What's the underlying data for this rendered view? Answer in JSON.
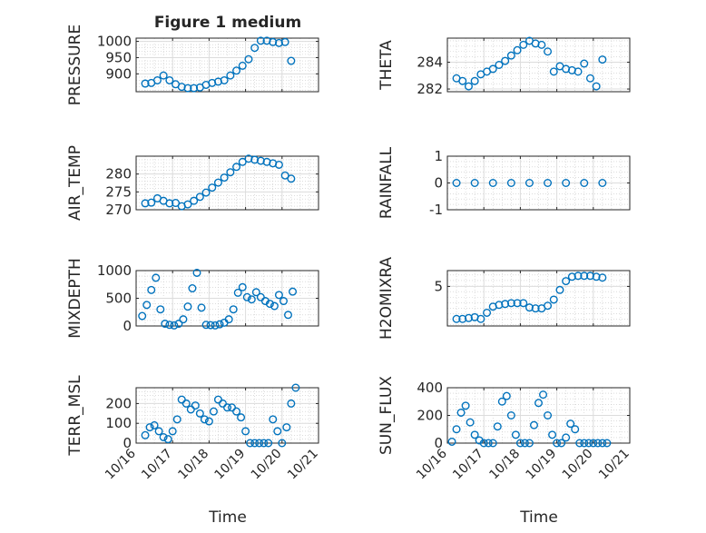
{
  "figure": {
    "title": "Figure 1 medium",
    "marker_color": "#0072BD",
    "x_axis": {
      "label": "Time",
      "range": [
        "10/16",
        "10/21"
      ],
      "ticks": [
        "10/16",
        "10/17",
        "10/18",
        "10/19",
        "10/20",
        "10/21"
      ]
    }
  },
  "chart_data": [
    {
      "type": "scatter",
      "panel": "pressure",
      "ylabel": "PRESSURE",
      "ylim": [
        845,
        1010
      ],
      "yticks": [
        900,
        950,
        1000
      ],
      "grid": "on",
      "marker": "open-circle",
      "x": [
        "10/16 06:00",
        "10/16 10:00",
        "10/16 14:00",
        "10/16 18:00",
        "10/16 22:00",
        "10/17 02:00",
        "10/17 06:00",
        "10/17 10:00",
        "10/17 14:00",
        "10/17 18:00",
        "10/17 22:00",
        "10/18 02:00",
        "10/18 06:00",
        "10/18 10:00",
        "10/18 14:00",
        "10/18 18:00",
        "10/18 22:00",
        "10/19 02:00",
        "10/19 06:00",
        "10/19 10:00",
        "10/19 14:00",
        "10/19 18:00",
        "10/19 22:00",
        "10/20 02:00",
        "10/20 06:00"
      ],
      "y": [
        870,
        872,
        880,
        895,
        880,
        868,
        860,
        856,
        856,
        858,
        866,
        872,
        876,
        880,
        895,
        910,
        925,
        945,
        980,
        1002,
        1002,
        998,
        995,
        998,
        940
      ]
    },
    {
      "type": "scatter",
      "panel": "theta",
      "ylabel": "THETA",
      "ylim": [
        281.8,
        285.8
      ],
      "yticks": [
        282,
        284
      ],
      "grid": "on",
      "marker": "open-circle",
      "x": [
        "10/16 06:00",
        "10/16 10:00",
        "10/16 14:00",
        "10/16 18:00",
        "10/16 22:00",
        "10/17 02:00",
        "10/17 06:00",
        "10/17 10:00",
        "10/17 14:00",
        "10/17 18:00",
        "10/17 22:00",
        "10/18 02:00",
        "10/18 06:00",
        "10/18 10:00",
        "10/18 14:00",
        "10/18 18:00",
        "10/18 22:00",
        "10/19 02:00",
        "10/19 06:00",
        "10/19 10:00",
        "10/19 14:00",
        "10/19 18:00",
        "10/19 22:00",
        "10/20 02:00",
        "10/20 06:00"
      ],
      "y": [
        282.8,
        282.6,
        282.2,
        282.6,
        283.1,
        283.3,
        283.5,
        283.8,
        284.1,
        284.5,
        284.9,
        285.3,
        285.6,
        285.4,
        285.3,
        284.8,
        283.3,
        283.7,
        283.5,
        283.4,
        283.3,
        283.9,
        282.8,
        282.2,
        284.2
      ]
    },
    {
      "type": "scatter",
      "panel": "air_temp",
      "ylabel": "AIR_TEMP",
      "ylim": [
        270,
        285
      ],
      "yticks": [
        270,
        275,
        280
      ],
      "grid": "on",
      "marker": "open-circle",
      "x": [
        "10/16 06:00",
        "10/16 10:00",
        "10/16 14:00",
        "10/16 18:00",
        "10/16 22:00",
        "10/17 02:00",
        "10/17 06:00",
        "10/17 10:00",
        "10/17 14:00",
        "10/17 18:00",
        "10/17 22:00",
        "10/18 02:00",
        "10/18 06:00",
        "10/18 10:00",
        "10/18 14:00",
        "10/18 18:00",
        "10/18 22:00",
        "10/19 02:00",
        "10/19 06:00",
        "10/19 10:00",
        "10/19 14:00",
        "10/19 18:00",
        "10/19 22:00",
        "10/20 02:00",
        "10/20 06:00"
      ],
      "y": [
        271.8,
        272.0,
        273.2,
        272.5,
        271.8,
        271.9,
        271.0,
        271.5,
        272.5,
        273.6,
        274.8,
        276.2,
        277.6,
        279.0,
        280.5,
        282.0,
        283.4,
        284.3,
        284.0,
        283.7,
        283.4,
        283.0,
        282.6,
        279.6,
        278.7
      ]
    },
    {
      "type": "scatter",
      "panel": "rainfall",
      "ylabel": "RAINFALL",
      "ylim": [
        -1,
        1
      ],
      "yticks": [
        -1,
        0,
        1
      ],
      "grid": "on",
      "marker": "open-circle",
      "x": [
        "10/16 06:00",
        "10/16 18:00",
        "10/17 06:00",
        "10/17 18:00",
        "10/18 06:00",
        "10/18 18:00",
        "10/19 06:00",
        "10/19 18:00",
        "10/20 06:00"
      ],
      "y": [
        0,
        0,
        0,
        0,
        0,
        0,
        0,
        0,
        0
      ]
    },
    {
      "type": "scatter",
      "panel": "mixdepth",
      "ylabel": "MIXDEPTH",
      "ylim": [
        0,
        1000
      ],
      "yticks": [
        0,
        500,
        1000
      ],
      "grid": "on",
      "marker": "open-circle",
      "x": [
        "10/16 04:00",
        "10/16 07:00",
        "10/16 10:00",
        "10/16 13:00",
        "10/16 16:00",
        "10/16 19:00",
        "10/16 22:00",
        "10/17 01:00",
        "10/17 04:00",
        "10/17 07:00",
        "10/17 10:00",
        "10/17 13:00",
        "10/17 16:00",
        "10/17 19:00",
        "10/17 22:00",
        "10/18 01:00",
        "10/18 04:00",
        "10/18 07:00",
        "10/18 10:00",
        "10/18 13:00",
        "10/18 16:00",
        "10/18 19:00",
        "10/18 22:00",
        "10/19 01:00",
        "10/19 04:00",
        "10/19 07:00",
        "10/19 10:00",
        "10/19 13:00",
        "10/19 16:00",
        "10/19 19:00",
        "10/19 22:00",
        "10/20 01:00",
        "10/20 04:00",
        "10/20 07:00"
      ],
      "y": [
        180,
        380,
        650,
        870,
        300,
        40,
        20,
        10,
        40,
        120,
        350,
        680,
        960,
        330,
        20,
        15,
        10,
        30,
        60,
        120,
        300,
        600,
        700,
        520,
        480,
        610,
        520,
        450,
        400,
        360,
        560,
        450,
        200,
        620
      ]
    },
    {
      "type": "scatter",
      "panel": "h2omixra",
      "ylabel": "H2OMIXRA",
      "ylim": [
        0.5,
        6.8
      ],
      "yticks": [
        5
      ],
      "grid": "on",
      "marker": "open-circle",
      "x": [
        "10/16 06:00",
        "10/16 10:00",
        "10/16 14:00",
        "10/16 18:00",
        "10/16 22:00",
        "10/17 02:00",
        "10/17 06:00",
        "10/17 10:00",
        "10/17 14:00",
        "10/17 18:00",
        "10/17 22:00",
        "10/18 02:00",
        "10/18 06:00",
        "10/18 10:00",
        "10/18 14:00",
        "10/18 18:00",
        "10/18 22:00",
        "10/19 02:00",
        "10/19 06:00",
        "10/19 10:00",
        "10/19 14:00",
        "10/19 18:00",
        "10/19 22:00",
        "10/20 02:00",
        "10/20 06:00"
      ],
      "y": [
        1.3,
        1.3,
        1.4,
        1.5,
        1.3,
        2.0,
        2.7,
        2.9,
        3.0,
        3.1,
        3.1,
        3.1,
        2.6,
        2.5,
        2.5,
        2.8,
        3.5,
        4.6,
        5.6,
        6.1,
        6.2,
        6.2,
        6.2,
        6.1,
        6.0
      ]
    },
    {
      "type": "scatter",
      "panel": "terr_msl",
      "ylabel": "TERR_MSL",
      "ylim": [
        0,
        280
      ],
      "yticks": [
        0,
        100,
        200
      ],
      "grid": "on",
      "marker": "open-circle",
      "x": [
        "10/16 06:00",
        "10/16 09:00",
        "10/16 12:00",
        "10/16 15:00",
        "10/16 18:00",
        "10/16 21:00",
        "10/17 00:00",
        "10/17 03:00",
        "10/17 06:00",
        "10/17 09:00",
        "10/17 12:00",
        "10/17 15:00",
        "10/17 18:00",
        "10/17 21:00",
        "10/18 00:00",
        "10/18 03:00",
        "10/18 06:00",
        "10/18 09:00",
        "10/18 12:00",
        "10/18 15:00",
        "10/18 18:00",
        "10/18 21:00",
        "10/19 00:00",
        "10/19 03:00",
        "10/19 06:00",
        "10/19 09:00",
        "10/19 12:00",
        "10/19 15:00",
        "10/19 18:00",
        "10/19 21:00",
        "10/20 00:00",
        "10/20 03:00",
        "10/20 06:00",
        "10/20 09:00"
      ],
      "y": [
        40,
        80,
        90,
        60,
        30,
        20,
        60,
        120,
        220,
        200,
        170,
        190,
        150,
        120,
        110,
        160,
        220,
        200,
        180,
        180,
        160,
        130,
        60,
        0,
        0,
        0,
        0,
        0,
        120,
        60,
        0,
        80,
        200,
        280
      ]
    },
    {
      "type": "scatter",
      "panel": "sun_flux",
      "ylabel": "SUN_FLUX",
      "ylim": [
        0,
        400
      ],
      "yticks": [
        0,
        200,
        400
      ],
      "grid": "on",
      "marker": "open-circle",
      "x": [
        "10/16 03:00",
        "10/16 06:00",
        "10/16 09:00",
        "10/16 12:00",
        "10/16 15:00",
        "10/16 18:00",
        "10/16 21:00",
        "10/17 00:00",
        "10/17 03:00",
        "10/17 06:00",
        "10/17 09:00",
        "10/17 12:00",
        "10/17 15:00",
        "10/17 18:00",
        "10/17 21:00",
        "10/18 00:00",
        "10/18 03:00",
        "10/18 06:00",
        "10/18 09:00",
        "10/18 12:00",
        "10/18 15:00",
        "10/18 18:00",
        "10/18 21:00",
        "10/19 00:00",
        "10/19 03:00",
        "10/19 06:00",
        "10/19 09:00",
        "10/19 12:00",
        "10/19 15:00",
        "10/19 18:00",
        "10/19 21:00",
        "10/20 00:00",
        "10/20 03:00",
        "10/20 06:00",
        "10/20 09:00"
      ],
      "y": [
        10,
        100,
        220,
        270,
        150,
        60,
        20,
        0,
        0,
        0,
        120,
        300,
        340,
        200,
        60,
        0,
        0,
        0,
        130,
        290,
        350,
        200,
        60,
        0,
        0,
        40,
        140,
        100,
        0,
        0,
        0,
        0,
        0,
        0,
        0
      ]
    }
  ]
}
